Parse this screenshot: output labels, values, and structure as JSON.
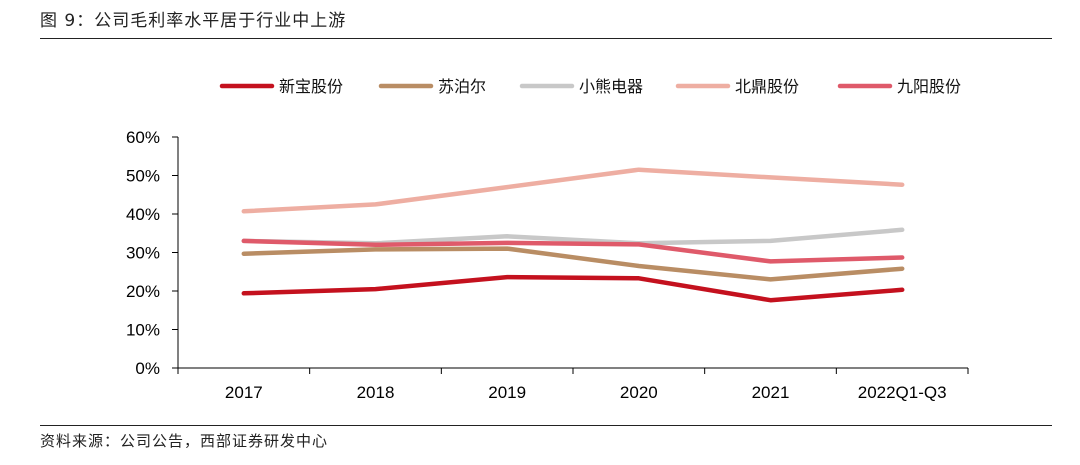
{
  "figure": {
    "title": "图 9：公司毛利率水平居于行业中上游",
    "source": "资料来源：公司公告，西部证券研发中心"
  },
  "chart_data": {
    "type": "line",
    "title": "公司毛利率水平居于行业中上游",
    "xlabel": "",
    "ylabel": "",
    "categories": [
      "2017",
      "2018",
      "2019",
      "2020",
      "2021",
      "2022Q1-Q3"
    ],
    "ylim": [
      0,
      60
    ],
    "yticks": [
      0,
      10,
      20,
      30,
      40,
      50,
      60
    ],
    "ytick_labels": [
      "0%",
      "10%",
      "20%",
      "30%",
      "40%",
      "50%",
      "60%"
    ],
    "legend_position": "top",
    "series": [
      {
        "name": "新宝股份",
        "color": "#c4111e",
        "values": [
          19.4,
          20.5,
          23.6,
          23.3,
          17.6,
          20.3
        ]
      },
      {
        "name": "苏泊尔",
        "color": "#b98d64",
        "values": [
          29.7,
          30.8,
          31.0,
          26.5,
          23.0,
          25.8
        ]
      },
      {
        "name": "小熊电器",
        "color": "#c8c8c8",
        "values": [
          33.0,
          32.4,
          34.2,
          32.4,
          33.0,
          35.9
        ]
      },
      {
        "name": "北鼎股份",
        "color": "#eeaea2",
        "values": [
          40.7,
          42.5,
          47.0,
          51.5,
          49.5,
          47.6
        ]
      },
      {
        "name": "九阳股份",
        "color": "#df5a6a",
        "values": [
          33.0,
          32.0,
          32.5,
          32.1,
          27.7,
          28.7
        ]
      }
    ]
  }
}
